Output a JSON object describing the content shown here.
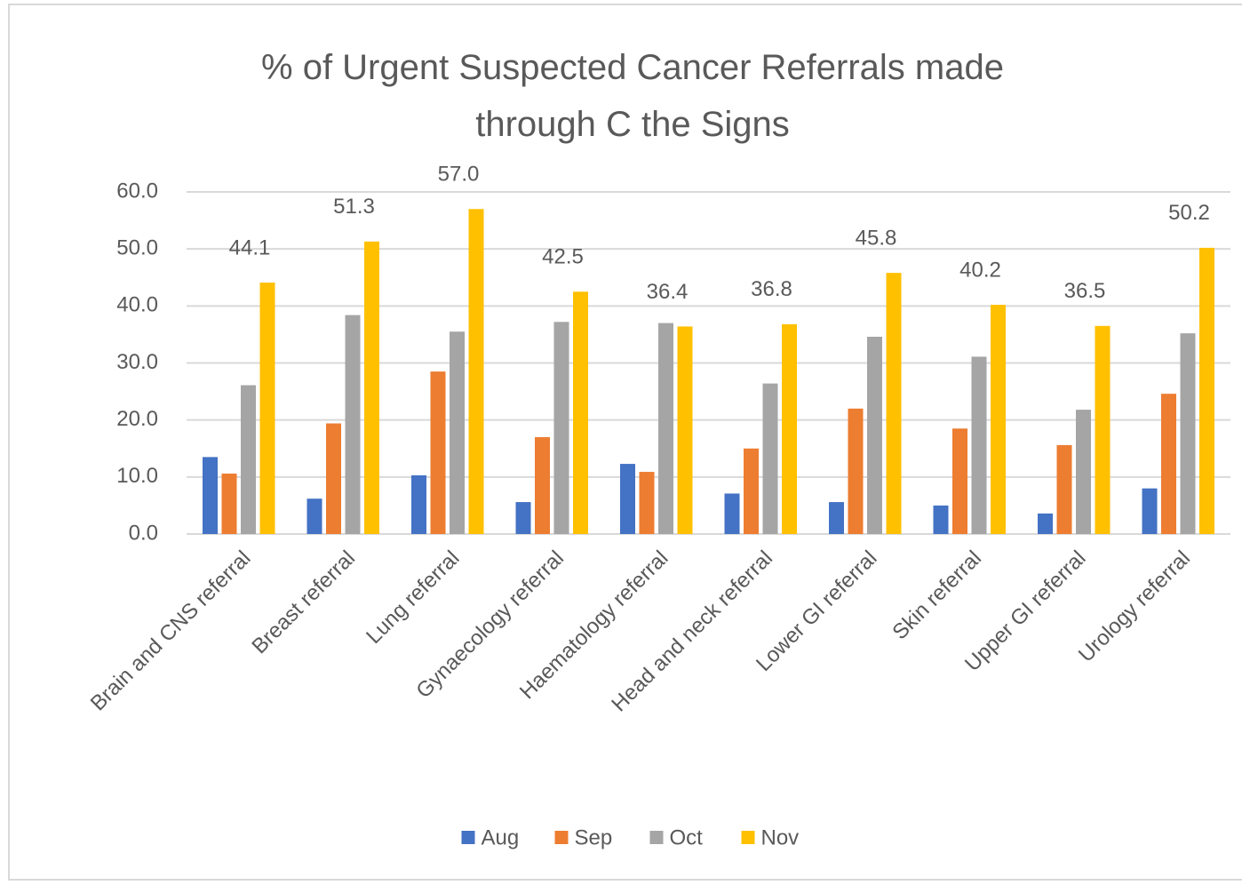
{
  "chart_data": {
    "type": "bar",
    "title": "% of Urgent Suspected Cancer Referrals made through C the Signs",
    "categories": [
      "Brain and CNS referral",
      "Breast referral",
      "Lung referral",
      "Gynaecology referral",
      "Haematology referral",
      "Head and neck referral",
      "Lower GI referral",
      "Skin referral",
      "Upper GI referral",
      "Urology referral"
    ],
    "series": [
      {
        "name": "Aug",
        "color": "#4472c4",
        "values": [
          13.5,
          6.2,
          10.3,
          5.6,
          12.3,
          7.1,
          5.6,
          5.0,
          3.6,
          8.0
        ]
      },
      {
        "name": "Sep",
        "color": "#ed7d31",
        "values": [
          10.6,
          19.4,
          28.5,
          17.0,
          10.9,
          15.0,
          22.0,
          18.5,
          15.6,
          24.6
        ]
      },
      {
        "name": "Oct",
        "color": "#a5a5a5",
        "values": [
          26.1,
          38.4,
          35.5,
          37.2,
          37.0,
          26.4,
          34.6,
          31.1,
          21.8,
          35.2
        ]
      },
      {
        "name": "Nov",
        "color": "#ffc000",
        "values": [
          44.1,
          51.3,
          57.0,
          42.5,
          36.4,
          36.8,
          45.8,
          40.2,
          36.5,
          50.2
        ],
        "value_labels": [
          "44.1",
          "51.3",
          "57.0",
          "42.5",
          "36.4",
          "36.8",
          "45.8",
          "40.2",
          "36.5",
          "50.2"
        ]
      }
    ],
    "ylim": [
      0,
      60
    ],
    "yticks": [
      {
        "value": 0,
        "label": "0.0"
      },
      {
        "value": 10,
        "label": "10.0"
      },
      {
        "value": 20,
        "label": "20.0"
      },
      {
        "value": 30,
        "label": "30.0"
      },
      {
        "value": 40,
        "label": "40.0"
      },
      {
        "value": 50,
        "label": "50.0"
      },
      {
        "value": 60,
        "label": "60.0"
      }
    ],
    "grid": true,
    "legend": "bottom"
  }
}
